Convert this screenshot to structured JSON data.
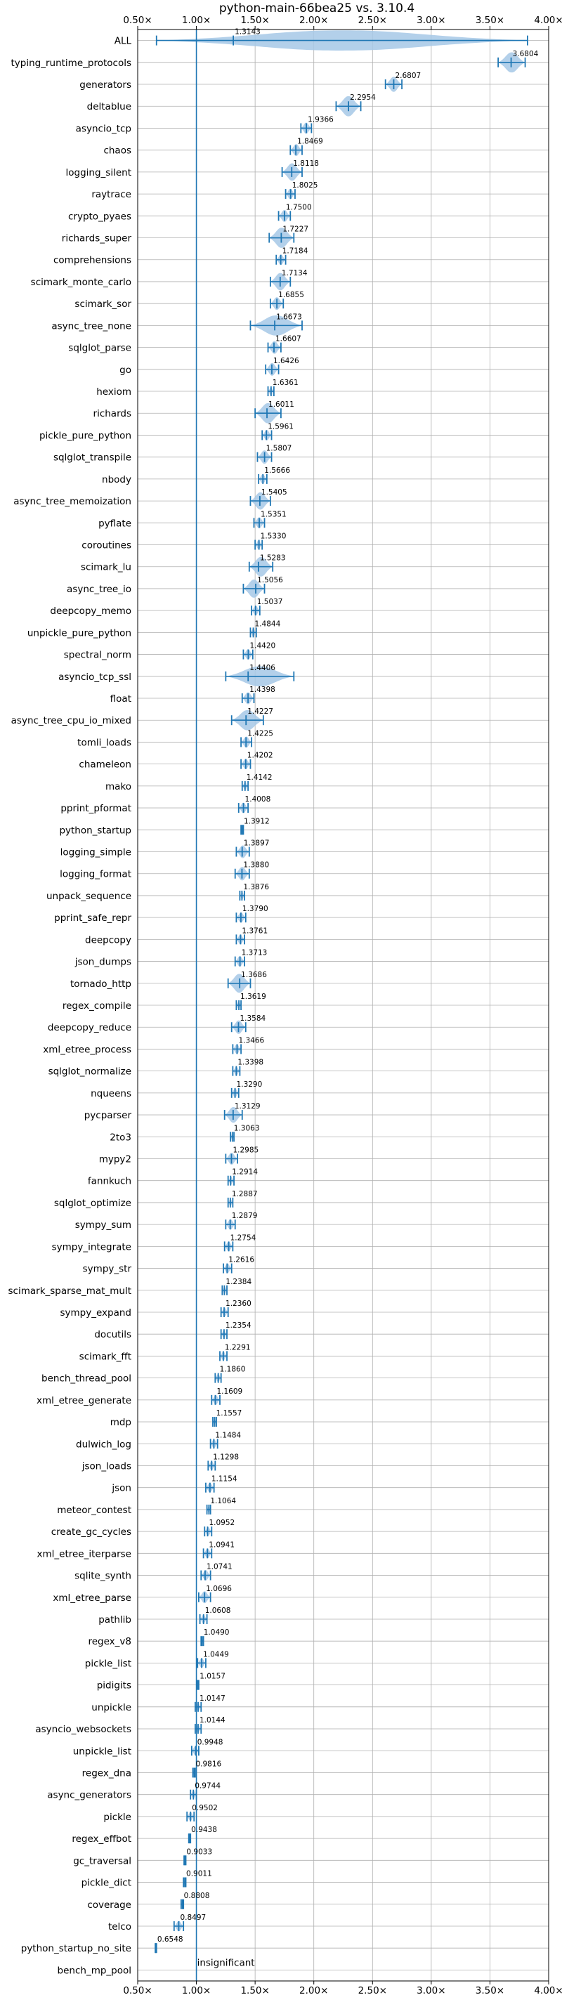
{
  "chart_data": {
    "type": "violin",
    "title": "python-main-66bea25 vs. 3.10.4",
    "xlim": [
      0.5,
      4.0
    ],
    "x_ticks": [
      0.5,
      1.0,
      1.5,
      2.0,
      2.5,
      3.0,
      3.5,
      4.0
    ],
    "x_tick_labels": [
      "0.50×",
      "1.00×",
      "1.50×",
      "2.00×",
      "2.50×",
      "3.00×",
      "3.50×",
      "4.00×"
    ],
    "reference_line": 1.0,
    "grid": true,
    "colors": {
      "violin": "#a6c8e6",
      "marks": "#1f77b4",
      "reference": "#1f77b4",
      "grid": "#b0b0b0"
    },
    "benchmarks": [
      {
        "name": "ALL",
        "label": "1.3143",
        "mean": 1.3143,
        "min": 0.66,
        "max": 3.82
      },
      {
        "name": "typing_runtime_protocols",
        "label": "3.6804",
        "mean": 3.6804,
        "min": 3.57,
        "max": 3.8
      },
      {
        "name": "generators",
        "label": "2.6807",
        "mean": 2.6807,
        "min": 2.61,
        "max": 2.75
      },
      {
        "name": "deltablue",
        "label": "2.2954",
        "mean": 2.2954,
        "min": 2.19,
        "max": 2.4
      },
      {
        "name": "asyncio_tcp",
        "label": "1.9366",
        "mean": 1.9366,
        "min": 1.89,
        "max": 1.98
      },
      {
        "name": "chaos",
        "label": "1.8469",
        "mean": 1.8469,
        "min": 1.8,
        "max": 1.9
      },
      {
        "name": "logging_silent",
        "label": "1.8118",
        "mean": 1.8118,
        "min": 1.73,
        "max": 1.9
      },
      {
        "name": "raytrace",
        "label": "1.8025",
        "mean": 1.8025,
        "min": 1.76,
        "max": 1.84
      },
      {
        "name": "crypto_pyaes",
        "label": "1.7500",
        "mean": 1.75,
        "min": 1.7,
        "max": 1.8
      },
      {
        "name": "richards_super",
        "label": "1.7227",
        "mean": 1.7227,
        "min": 1.62,
        "max": 1.83
      },
      {
        "name": "comprehensions",
        "label": "1.7184",
        "mean": 1.7184,
        "min": 1.68,
        "max": 1.76
      },
      {
        "name": "scimark_monte_carlo",
        "label": "1.7134",
        "mean": 1.7134,
        "min": 1.63,
        "max": 1.8
      },
      {
        "name": "scimark_sor",
        "label": "1.6855",
        "mean": 1.6855,
        "min": 1.63,
        "max": 1.74
      },
      {
        "name": "async_tree_none",
        "label": "1.6673",
        "mean": 1.6673,
        "min": 1.46,
        "max": 1.9
      },
      {
        "name": "sqlglot_parse",
        "label": "1.6607",
        "mean": 1.6607,
        "min": 1.61,
        "max": 1.72
      },
      {
        "name": "go",
        "label": "1.6426",
        "mean": 1.6426,
        "min": 1.59,
        "max": 1.7
      },
      {
        "name": "hexiom",
        "label": "1.6361",
        "mean": 1.6361,
        "min": 1.61,
        "max": 1.66
      },
      {
        "name": "richards",
        "label": "1.6011",
        "mean": 1.6011,
        "min": 1.5,
        "max": 1.72
      },
      {
        "name": "pickle_pure_python",
        "label": "1.5961",
        "mean": 1.5961,
        "min": 1.56,
        "max": 1.64
      },
      {
        "name": "sqlglot_transpile",
        "label": "1.5807",
        "mean": 1.5807,
        "min": 1.52,
        "max": 1.64
      },
      {
        "name": "nbody",
        "label": "1.5666",
        "mean": 1.5666,
        "min": 1.53,
        "max": 1.6
      },
      {
        "name": "async_tree_memoization",
        "label": "1.5405",
        "mean": 1.5405,
        "min": 1.46,
        "max": 1.63
      },
      {
        "name": "pyflate",
        "label": "1.5351",
        "mean": 1.5351,
        "min": 1.49,
        "max": 1.58
      },
      {
        "name": "coroutines",
        "label": "1.5330",
        "mean": 1.533,
        "min": 1.5,
        "max": 1.56
      },
      {
        "name": "scimark_lu",
        "label": "1.5283",
        "mean": 1.5283,
        "min": 1.45,
        "max": 1.65
      },
      {
        "name": "async_tree_io",
        "label": "1.5056",
        "mean": 1.5056,
        "min": 1.4,
        "max": 1.58
      },
      {
        "name": "deepcopy_memo",
        "label": "1.5037",
        "mean": 1.5037,
        "min": 1.47,
        "max": 1.54
      },
      {
        "name": "unpickle_pure_python",
        "label": "1.4844",
        "mean": 1.4844,
        "min": 1.46,
        "max": 1.51
      },
      {
        "name": "spectral_norm",
        "label": "1.4420",
        "mean": 1.442,
        "min": 1.4,
        "max": 1.48
      },
      {
        "name": "asyncio_tcp_ssl",
        "label": "1.4406",
        "mean": 1.4406,
        "min": 1.25,
        "max": 1.83
      },
      {
        "name": "float",
        "label": "1.4398",
        "mean": 1.4398,
        "min": 1.39,
        "max": 1.49
      },
      {
        "name": "async_tree_cpu_io_mixed",
        "label": "1.4227",
        "mean": 1.4227,
        "min": 1.3,
        "max": 1.57
      },
      {
        "name": "tomli_loads",
        "label": "1.4225",
        "mean": 1.4225,
        "min": 1.38,
        "max": 1.47
      },
      {
        "name": "chameleon",
        "label": "1.4202",
        "mean": 1.4202,
        "min": 1.38,
        "max": 1.46
      },
      {
        "name": "mako",
        "label": "1.4142",
        "mean": 1.4142,
        "min": 1.39,
        "max": 1.44
      },
      {
        "name": "pprint_pformat",
        "label": "1.4008",
        "mean": 1.4008,
        "min": 1.36,
        "max": 1.44
      },
      {
        "name": "python_startup",
        "label": "1.3912",
        "mean": 1.3912,
        "min": 1.38,
        "max": 1.4
      },
      {
        "name": "logging_simple",
        "label": "1.3897",
        "mean": 1.3897,
        "min": 1.34,
        "max": 1.45
      },
      {
        "name": "logging_format",
        "label": "1.3880",
        "mean": 1.388,
        "min": 1.33,
        "max": 1.45
      },
      {
        "name": "unpack_sequence",
        "label": "1.3876",
        "mean": 1.3876,
        "min": 1.37,
        "max": 1.41
      },
      {
        "name": "pprint_safe_repr",
        "label": "1.3790",
        "mean": 1.379,
        "min": 1.34,
        "max": 1.42
      },
      {
        "name": "deepcopy",
        "label": "1.3761",
        "mean": 1.3761,
        "min": 1.34,
        "max": 1.41
      },
      {
        "name": "json_dumps",
        "label": "1.3713",
        "mean": 1.3713,
        "min": 1.33,
        "max": 1.41
      },
      {
        "name": "tornado_http",
        "label": "1.3686",
        "mean": 1.3686,
        "min": 1.27,
        "max": 1.46
      },
      {
        "name": "regex_compile",
        "label": "1.3619",
        "mean": 1.3619,
        "min": 1.34,
        "max": 1.38
      },
      {
        "name": "deepcopy_reduce",
        "label": "1.3584",
        "mean": 1.3584,
        "min": 1.3,
        "max": 1.42
      },
      {
        "name": "xml_etree_process",
        "label": "1.3466",
        "mean": 1.3466,
        "min": 1.31,
        "max": 1.38
      },
      {
        "name": "sqlglot_normalize",
        "label": "1.3398",
        "mean": 1.3398,
        "min": 1.31,
        "max": 1.37
      },
      {
        "name": "nqueens",
        "label": "1.3290",
        "mean": 1.329,
        "min": 1.3,
        "max": 1.36
      },
      {
        "name": "pycparser",
        "label": "1.3129",
        "mean": 1.3129,
        "min": 1.24,
        "max": 1.39
      },
      {
        "name": "2to3",
        "label": "1.3063",
        "mean": 1.3063,
        "min": 1.29,
        "max": 1.32
      },
      {
        "name": "mypy2",
        "label": "1.2985",
        "mean": 1.2985,
        "min": 1.25,
        "max": 1.35
      },
      {
        "name": "fannkuch",
        "label": "1.2914",
        "mean": 1.2914,
        "min": 1.27,
        "max": 1.32
      },
      {
        "name": "sqlglot_optimize",
        "label": "1.2887",
        "mean": 1.2887,
        "min": 1.27,
        "max": 1.31
      },
      {
        "name": "sympy_sum",
        "label": "1.2879",
        "mean": 1.2879,
        "min": 1.25,
        "max": 1.33
      },
      {
        "name": "sympy_integrate",
        "label": "1.2754",
        "mean": 1.2754,
        "min": 1.24,
        "max": 1.31
      },
      {
        "name": "sympy_str",
        "label": "1.2616",
        "mean": 1.2616,
        "min": 1.23,
        "max": 1.3
      },
      {
        "name": "scimark_sparse_mat_mult",
        "label": "1.2384",
        "mean": 1.2384,
        "min": 1.22,
        "max": 1.26
      },
      {
        "name": "sympy_expand",
        "label": "1.2360",
        "mean": 1.236,
        "min": 1.21,
        "max": 1.27
      },
      {
        "name": "docutils",
        "label": "1.2354",
        "mean": 1.2354,
        "min": 1.21,
        "max": 1.26
      },
      {
        "name": "scimark_fft",
        "label": "1.2291",
        "mean": 1.2291,
        "min": 1.2,
        "max": 1.26
      },
      {
        "name": "bench_thread_pool",
        "label": "1.1860",
        "mean": 1.186,
        "min": 1.16,
        "max": 1.21
      },
      {
        "name": "xml_etree_generate",
        "label": "1.1609",
        "mean": 1.1609,
        "min": 1.13,
        "max": 1.2
      },
      {
        "name": "mdp",
        "label": "1.1557",
        "mean": 1.1557,
        "min": 1.14,
        "max": 1.17
      },
      {
        "name": "dulwich_log",
        "label": "1.1484",
        "mean": 1.1484,
        "min": 1.12,
        "max": 1.18
      },
      {
        "name": "json_loads",
        "label": "1.1298",
        "mean": 1.1298,
        "min": 1.1,
        "max": 1.16
      },
      {
        "name": "json",
        "label": "1.1154",
        "mean": 1.1154,
        "min": 1.08,
        "max": 1.15
      },
      {
        "name": "meteor_contest",
        "label": "1.1064",
        "mean": 1.1064,
        "min": 1.09,
        "max": 1.12
      },
      {
        "name": "create_gc_cycles",
        "label": "1.0952",
        "mean": 1.0952,
        "min": 1.07,
        "max": 1.13
      },
      {
        "name": "xml_etree_iterparse",
        "label": "1.0941",
        "mean": 1.0941,
        "min": 1.06,
        "max": 1.13
      },
      {
        "name": "sqlite_synth",
        "label": "1.0741",
        "mean": 1.0741,
        "min": 1.04,
        "max": 1.12
      },
      {
        "name": "xml_etree_parse",
        "label": "1.0696",
        "mean": 1.0696,
        "min": 1.02,
        "max": 1.12
      },
      {
        "name": "pathlib",
        "label": "1.0608",
        "mean": 1.0608,
        "min": 1.03,
        "max": 1.09
      },
      {
        "name": "regex_v8",
        "label": "1.0490",
        "mean": 1.049,
        "min": 1.04,
        "max": 1.06
      },
      {
        "name": "pickle_list",
        "label": "1.0449",
        "mean": 1.0449,
        "min": 1.01,
        "max": 1.08
      },
      {
        "name": "pidigits",
        "label": "1.0157",
        "mean": 1.0157,
        "min": 1.01,
        "max": 1.02
      },
      {
        "name": "unpickle",
        "label": "1.0147",
        "mean": 1.0147,
        "min": 0.99,
        "max": 1.04
      },
      {
        "name": "asyncio_websockets",
        "label": "1.0144",
        "mean": 1.0144,
        "min": 0.99,
        "max": 1.04
      },
      {
        "name": "unpickle_list",
        "label": "0.9948",
        "mean": 0.9948,
        "min": 0.96,
        "max": 1.02
      },
      {
        "name": "regex_dna",
        "label": "0.9816",
        "mean": 0.9816,
        "min": 0.97,
        "max": 0.99
      },
      {
        "name": "async_generators",
        "label": "0.9744",
        "mean": 0.9744,
        "min": 0.95,
        "max": 1.0
      },
      {
        "name": "pickle",
        "label": "0.9502",
        "mean": 0.9502,
        "min": 0.92,
        "max": 0.98
      },
      {
        "name": "regex_effbot",
        "label": "0.9438",
        "mean": 0.9438,
        "min": 0.935,
        "max": 0.95
      },
      {
        "name": "gc_traversal",
        "label": "0.9033",
        "mean": 0.9033,
        "min": 0.895,
        "max": 0.91
      },
      {
        "name": "pickle_dict",
        "label": "0.9011",
        "mean": 0.9011,
        "min": 0.89,
        "max": 0.91
      },
      {
        "name": "coverage",
        "label": "0.8808",
        "mean": 0.8808,
        "min": 0.87,
        "max": 0.89
      },
      {
        "name": "telco",
        "label": "0.8497",
        "mean": 0.8497,
        "min": 0.81,
        "max": 0.89
      },
      {
        "name": "python_startup_no_site",
        "label": "0.6548",
        "mean": 0.6548,
        "min": 0.65,
        "max": 0.66
      },
      {
        "name": "bench_mp_pool",
        "label": "insignificant",
        "mean": null,
        "min": null,
        "max": null
      }
    ]
  }
}
